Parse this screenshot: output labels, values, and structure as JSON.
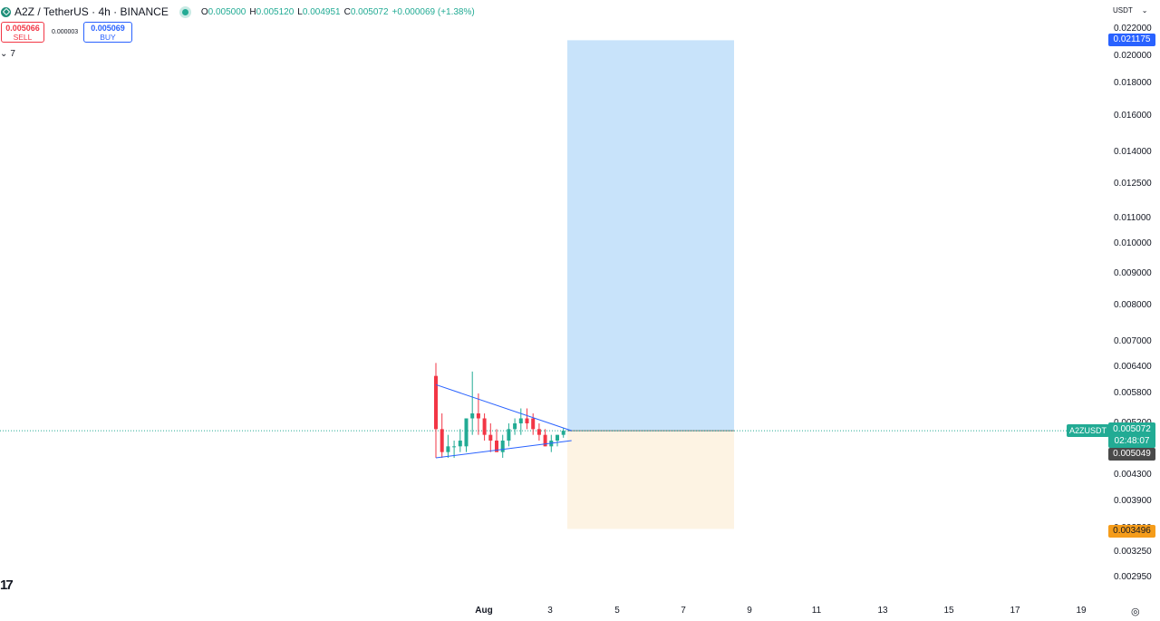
{
  "header": {
    "symbol": "A2Z",
    "title": "A2Z / TetherUS · 4h · BINANCE",
    "ohlc": {
      "o_label": "O",
      "o": "0.005000",
      "h_label": "H",
      "h": "0.005120",
      "l_label": "L",
      "l": "0.004951",
      "c_label": "C",
      "c": "0.005072",
      "change": "+0.000069 (+1.38%)"
    }
  },
  "trade": {
    "sell_price": "0.005066",
    "sell_label": "SELL",
    "spread": "0.000003",
    "buy_price": "0.005069",
    "buy_label": "BUY"
  },
  "indicators": {
    "toggle_icon": "chevron-down-icon",
    "count": "7"
  },
  "logo_text": "17",
  "price_axis": {
    "currency": "USDT",
    "ticks": [
      "0.022000",
      "0.020000",
      "0.018000",
      "0.016000",
      "0.014000",
      "0.012500",
      "0.011000",
      "0.010000",
      "0.009000",
      "0.008000",
      "0.007000",
      "0.006400",
      "0.005800",
      "0.005200",
      "0.004300",
      "0.003900",
      "0.003500",
      "0.003250",
      "0.002950"
    ],
    "badges": {
      "target": "0.021175",
      "stop": "0.003496",
      "last_price": "0.005072",
      "countdown": "02:48:07",
      "crosshair": "0.005049",
      "symbol_tag": "A2ZUSDT"
    }
  },
  "time_axis": {
    "labels": [
      "Aug",
      "3",
      "5",
      "7",
      "9",
      "11",
      "13",
      "15",
      "17",
      "19"
    ]
  },
  "colors": {
    "up": "#22ab94",
    "down": "#f23645",
    "target_zone": "#c8e3fa",
    "stop_zone": "#fdf3e3",
    "trendline": "#2962ff",
    "price_line": "#22ab94"
  },
  "position_tool": {
    "entry": 0.005072,
    "target": 0.021175,
    "stop": 0.003496
  },
  "candles": [
    {
      "o": 0.0062,
      "h": 0.0065,
      "l": 0.0046,
      "c": 0.0051
    },
    {
      "o": 0.0051,
      "h": 0.0054,
      "l": 0.0046,
      "c": 0.0047
    },
    {
      "o": 0.0047,
      "h": 0.005,
      "l": 0.0046,
      "c": 0.0048
    },
    {
      "o": 0.0048,
      "h": 0.0049,
      "l": 0.0046,
      "c": 0.0048
    },
    {
      "o": 0.0048,
      "h": 0.0051,
      "l": 0.0047,
      "c": 0.0049
    },
    {
      "o": 0.0048,
      "h": 0.0053,
      "l": 0.0047,
      "c": 0.0053
    },
    {
      "o": 0.0053,
      "h": 0.0063,
      "l": 0.005,
      "c": 0.0054
    },
    {
      "o": 0.0054,
      "h": 0.0058,
      "l": 0.005,
      "c": 0.0053
    },
    {
      "o": 0.0053,
      "h": 0.0054,
      "l": 0.0049,
      "c": 0.005
    },
    {
      "o": 0.005,
      "h": 0.0052,
      "l": 0.0047,
      "c": 0.0049
    },
    {
      "o": 0.0049,
      "h": 0.0051,
      "l": 0.0047,
      "c": 0.0047
    },
    {
      "o": 0.0047,
      "h": 0.005,
      "l": 0.0046,
      "c": 0.0049
    },
    {
      "o": 0.0049,
      "h": 0.0052,
      "l": 0.0048,
      "c": 0.0051
    },
    {
      "o": 0.0051,
      "h": 0.0053,
      "l": 0.005,
      "c": 0.0052
    },
    {
      "o": 0.0052,
      "h": 0.0055,
      "l": 0.005,
      "c": 0.0053
    },
    {
      "o": 0.0053,
      "h": 0.0055,
      "l": 0.0051,
      "c": 0.0052
    },
    {
      "o": 0.0053,
      "h": 0.0054,
      "l": 0.005,
      "c": 0.0051
    },
    {
      "o": 0.0051,
      "h": 0.0052,
      "l": 0.0049,
      "c": 0.005
    },
    {
      "o": 0.005,
      "h": 0.0051,
      "l": 0.0048,
      "c": 0.0048
    },
    {
      "o": 0.0048,
      "h": 0.005,
      "l": 0.0047,
      "c": 0.0049
    },
    {
      "o": 0.0049,
      "h": 0.005,
      "l": 0.0048,
      "c": 0.005
    },
    {
      "o": 0.005,
      "h": 0.00512,
      "l": 0.00495,
      "c": 0.005072
    }
  ],
  "trendlines": [
    {
      "from": {
        "candle": 0,
        "price": 0.006
      },
      "to": {
        "candle": 21,
        "price": 0.005072
      }
    },
    {
      "from": {
        "candle": 0,
        "price": 0.0046
      },
      "to": {
        "candle": 21,
        "price": 0.0049
      }
    }
  ]
}
